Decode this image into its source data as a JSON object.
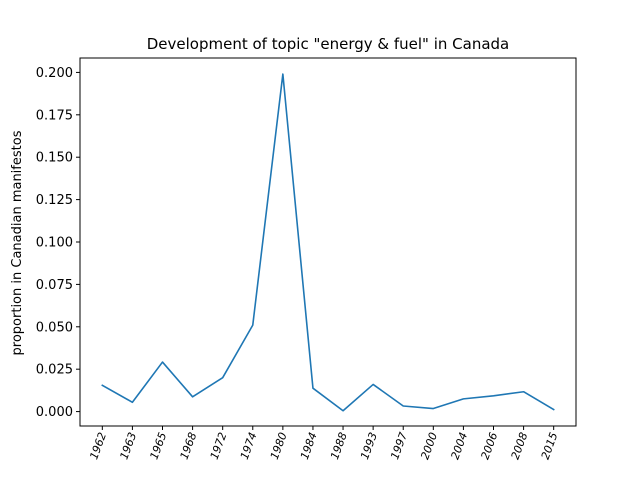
{
  "chart_data": {
    "type": "line",
    "title": "Development of topic \"energy & fuel\" in Canada",
    "xlabel": "",
    "ylabel": "proportion in Canadian manifestos",
    "categories": [
      "1962",
      "1963",
      "1965",
      "1968",
      "1972",
      "1974",
      "1980",
      "1984",
      "1988",
      "1993",
      "1997",
      "2000",
      "2004",
      "2006",
      "2008",
      "2015"
    ],
    "series": [
      {
        "values": [
          0.0155,
          0.0055,
          0.0292,
          0.0087,
          0.02,
          0.051,
          0.199,
          0.0138,
          0.0005,
          0.016,
          0.0033,
          0.0018,
          0.0075,
          0.0093,
          0.0117,
          0.0012
        ],
        "color": "#1f77b4"
      }
    ],
    "ylim": [
      -0.0085,
      0.2085
    ],
    "yticks": [
      0.0,
      0.025,
      0.05,
      0.075,
      0.1,
      0.125,
      0.15,
      0.175,
      0.2
    ],
    "ytick_labels": [
      "0.000",
      "0.025",
      "0.050",
      "0.075",
      "0.100",
      "0.125",
      "0.150",
      "0.175",
      "0.200"
    ],
    "grid": false,
    "legend": "none"
  }
}
